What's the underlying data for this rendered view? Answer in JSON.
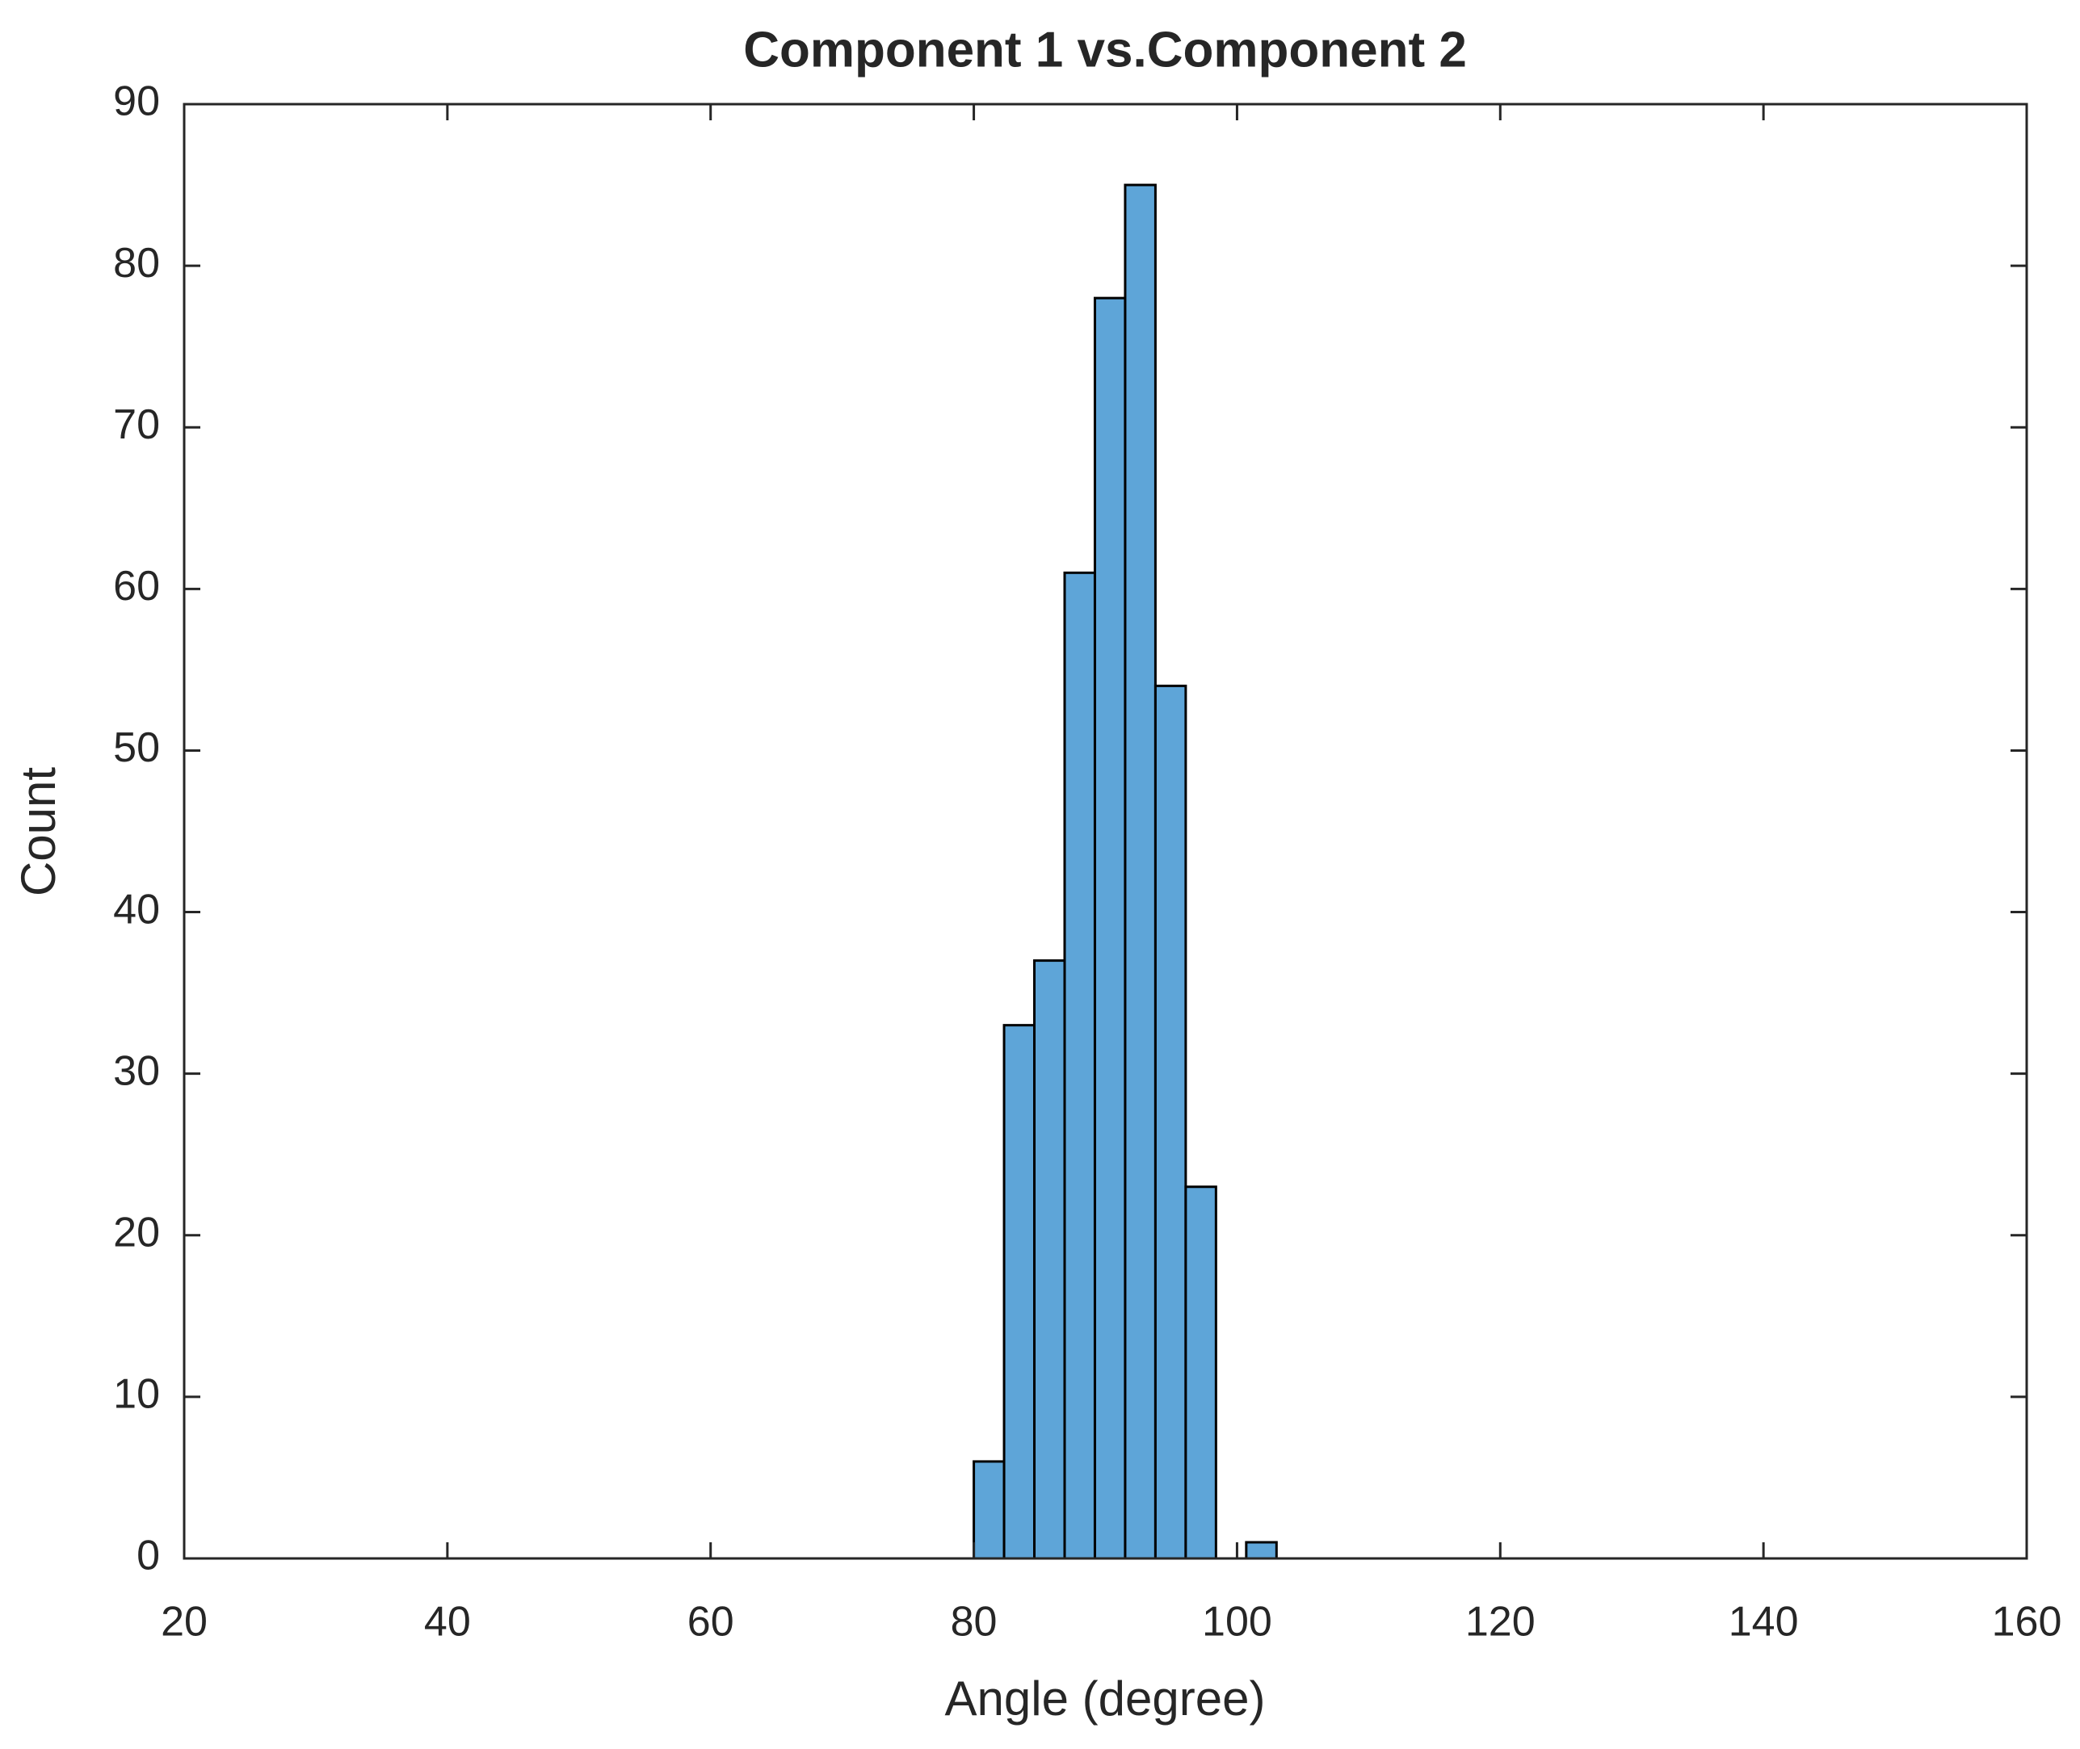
{
  "chart_data": {
    "type": "histogram",
    "title": "Component 1 vs.Component 2",
    "x_label": "Angle (degree)",
    "y_label": "Count",
    "bins": [
      80,
      82.3,
      84.6,
      86.9,
      89.2,
      91.5,
      93.8,
      96.1,
      98.4,
      100.7,
      103
    ],
    "values": [
      6,
      33,
      37,
      61,
      78,
      85,
      54,
      23,
      0,
      1
    ],
    "color": "#5ea5d8",
    "xlim": [
      20,
      160
    ],
    "xticks": [
      20,
      40,
      60,
      80,
      100,
      120,
      140,
      160
    ],
    "ylim": [
      0,
      90
    ],
    "yticks": [
      0,
      10,
      20,
      30,
      40,
      50,
      60,
      70,
      80,
      90
    ]
  }
}
